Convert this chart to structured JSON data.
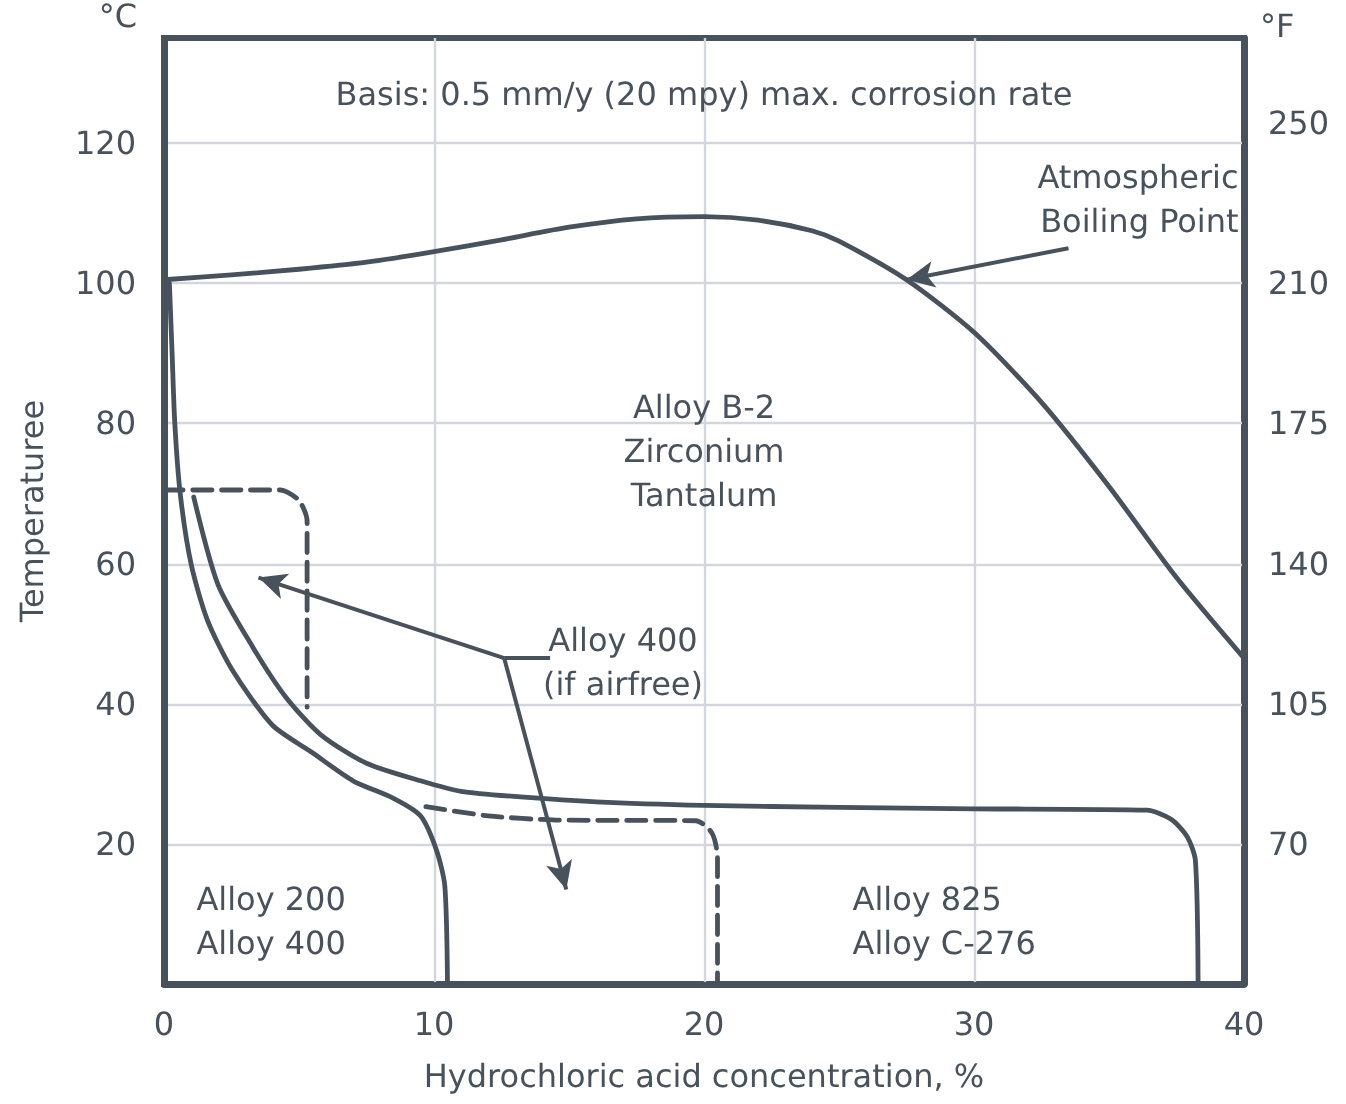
{
  "chart_data": {
    "type": "line",
    "xlabel": "Hydrochloric acid concentration, %",
    "ylabel": "Temperaturee",
    "y2label": "°F",
    "xlim": [
      0,
      40
    ],
    "xticks": [
      0,
      10,
      20,
      30,
      40
    ],
    "ylim": [
      0,
      135
    ],
    "yticks": [
      20,
      40,
      60,
      80,
      100,
      120
    ],
    "y2lim": [
      35,
      271.25
    ],
    "y2ticks": [
      70,
      105,
      140,
      175,
      210,
      250
    ],
    "grid": true,
    "marker": "none",
    "series": [
      {
        "color": "#48525c",
        "line_style": "solid",
        "x": [
          0,
          2.5,
          5,
          7.5,
          10,
          12.5,
          15,
          17.5,
          20,
          22,
          24,
          25,
          27.5,
          30,
          32.5,
          35,
          37.5,
          40
        ],
        "values": [
          100.5,
          101.2,
          102,
          103,
          104.5,
          106.2,
          108,
          109.2,
          109.5,
          109,
          107.5,
          106,
          100.5,
          93,
          83,
          71,
          58,
          46.5
        ]
      },
      {
        "color": "#48525c",
        "line_style": "solid",
        "x": [
          0.2,
          0.3,
          0.4,
          0.6,
          1,
          1.6,
          2.5,
          4,
          5.5,
          7,
          8.5,
          9.5,
          10.1,
          10.4,
          10.5
        ],
        "values": [
          100,
          90,
          80,
          70,
          60,
          52,
          45,
          37,
          33,
          29,
          26.5,
          24,
          19,
          14,
          0
        ]
      },
      {
        "color": "#48525c",
        "line_style": "solid",
        "x": [
          1.1,
          2,
          3.3,
          4.5,
          5.8,
          7.5,
          9.5,
          11,
          13.2,
          16,
          20,
          25,
          30,
          36.4,
          37.3,
          37.9,
          38.2,
          38.3
        ],
        "values": [
          69.5,
          57,
          48,
          41,
          35.6,
          31.5,
          29,
          27.5,
          26.7,
          26,
          25.5,
          25.2,
          25,
          24.8,
          23.5,
          21,
          17.6,
          0
        ]
      },
      {
        "color": "#48525c",
        "line_style": "dashed",
        "x": [
          0,
          4.3,
          5,
          5.3,
          5.3
        ],
        "values": [
          70.5,
          70.5,
          69,
          66,
          39.5
        ]
      },
      {
        "color": "#48525c",
        "line_style": "dashed",
        "x": [
          9.7,
          12,
          14.5,
          19.7,
          20.3,
          20.5,
          20.5
        ],
        "values": [
          25.3,
          24,
          23.4,
          23.3,
          21.5,
          18,
          0
        ]
      }
    ],
    "annotations": [
      "°C",
      "Basis: 0.5 mm/y (20 mpy) max. corrosion rate",
      {
        "text": "Atmospheric\nBoiling Point",
        "x": 27.5,
        "y": 100.5
      },
      "Alloy B-2\nZirconium\nTantalum",
      "Alloy 400\n(if airfree)",
      "Alloy 200\nAlloy 400",
      "Alloy 825\nAlloy C-276"
    ]
  }
}
